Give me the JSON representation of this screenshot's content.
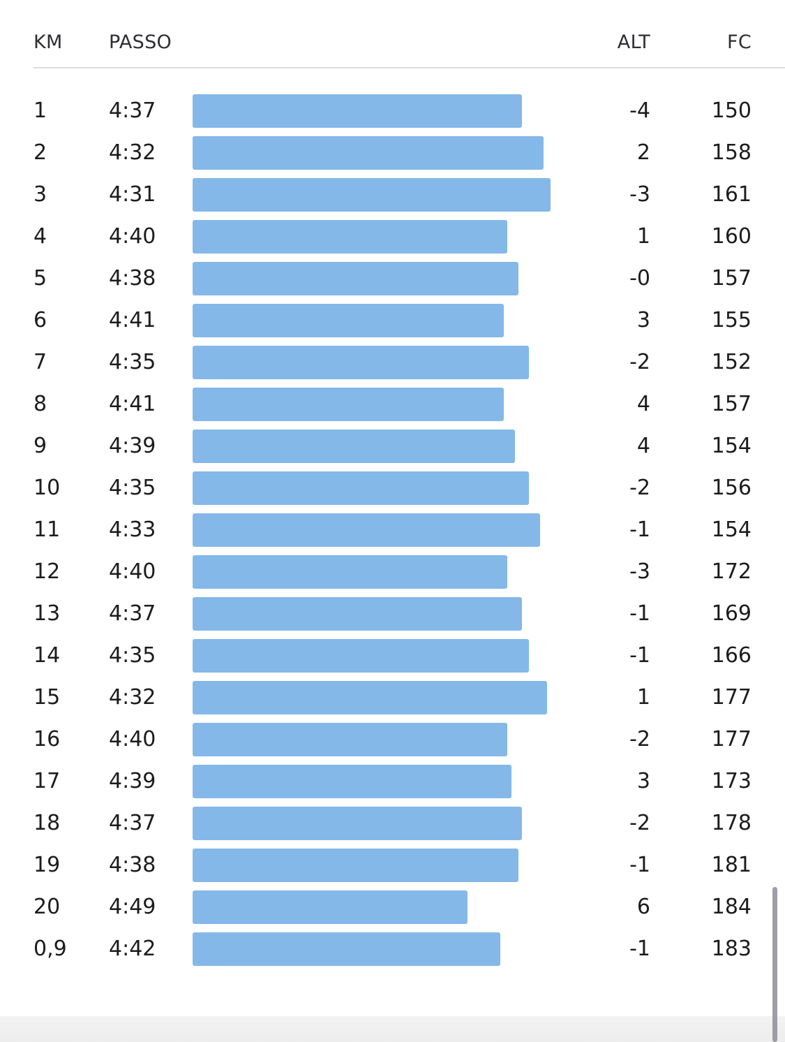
{
  "table": {
    "columns": {
      "km": "KM",
      "pace": "PASSO",
      "alt": "ALT",
      "hr": "FC"
    },
    "bar_color": "#84b8e8",
    "rows": [
      {
        "km": "1",
        "pace": "4:37",
        "alt": "-4",
        "hr": "150",
        "pace_fraction": 0.92
      },
      {
        "km": "2",
        "pace": "4:32",
        "alt": "2",
        "hr": "158",
        "pace_fraction": 0.98
      },
      {
        "km": "3",
        "pace": "4:31",
        "alt": "-3",
        "hr": "161",
        "pace_fraction": 1.0
      },
      {
        "km": "4",
        "pace": "4:40",
        "alt": "1",
        "hr": "160",
        "pace_fraction": 0.879
      },
      {
        "km": "5",
        "pace": "4:38",
        "alt": "-0",
        "hr": "157",
        "pace_fraction": 0.91
      },
      {
        "km": "6",
        "pace": "4:41",
        "alt": "3",
        "hr": "155",
        "pace_fraction": 0.869
      },
      {
        "km": "7",
        "pace": "4:35",
        "alt": "-2",
        "hr": "152",
        "pace_fraction": 0.94
      },
      {
        "km": "8",
        "pace": "4:41",
        "alt": "4",
        "hr": "157",
        "pace_fraction": 0.869
      },
      {
        "km": "9",
        "pace": "4:39",
        "alt": "4",
        "hr": "154",
        "pace_fraction": 0.9
      },
      {
        "km": "10",
        "pace": "4:35",
        "alt": "-2",
        "hr": "156",
        "pace_fraction": 0.94
      },
      {
        "km": "11",
        "pace": "4:33",
        "alt": "-1",
        "hr": "154",
        "pace_fraction": 0.97
      },
      {
        "km": "12",
        "pace": "4:40",
        "alt": "-3",
        "hr": "172",
        "pace_fraction": 0.879
      },
      {
        "km": "13",
        "pace": "4:37",
        "alt": "-1",
        "hr": "169",
        "pace_fraction": 0.92
      },
      {
        "km": "14",
        "pace": "4:35",
        "alt": "-1",
        "hr": "166",
        "pace_fraction": 0.94
      },
      {
        "km": "15",
        "pace": "4:32",
        "alt": "1",
        "hr": "177",
        "pace_fraction": 0.99
      },
      {
        "km": "16",
        "pace": "4:40",
        "alt": "-2",
        "hr": "177",
        "pace_fraction": 0.879
      },
      {
        "km": "17",
        "pace": "4:39",
        "alt": "3",
        "hr": "173",
        "pace_fraction": 0.89
      },
      {
        "km": "18",
        "pace": "4:37",
        "alt": "-2",
        "hr": "178",
        "pace_fraction": 0.92
      },
      {
        "km": "19",
        "pace": "4:38",
        "alt": "-1",
        "hr": "181",
        "pace_fraction": 0.91
      },
      {
        "km": "20",
        "pace": "4:49",
        "alt": "6",
        "hr": "184",
        "pace_fraction": 0.769
      },
      {
        "km": "0,9",
        "pace": "4:42",
        "alt": "-1",
        "hr": "183",
        "pace_fraction": 0.859
      }
    ]
  }
}
